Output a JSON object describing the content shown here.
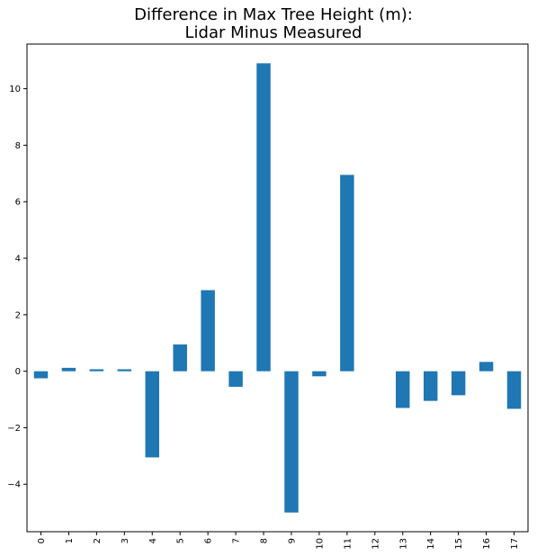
{
  "chart_data": {
    "type": "bar",
    "title": [
      "Difference in Max Tree Height (m):",
      "Lidar Minus Measured"
    ],
    "xlabel": "",
    "ylabel": "",
    "categories": [
      "0",
      "1",
      "2",
      "3",
      "4",
      "5",
      "6",
      "7",
      "8",
      "9",
      "10",
      "11",
      "12",
      "13",
      "14",
      "15",
      "16",
      "17"
    ],
    "values": [
      -0.25,
      0.12,
      0.07,
      0.07,
      -3.05,
      0.95,
      2.87,
      -0.55,
      10.9,
      -5.0,
      -0.18,
      6.95,
      0.0,
      -1.3,
      -1.05,
      -0.85,
      0.33,
      -1.33
    ],
    "ylim": [
      -5.68,
      11.58
    ],
    "yticks": [
      -4,
      -2,
      0,
      2,
      4,
      6,
      8,
      10
    ],
    "ytick_labels": [
      "−4",
      "−2",
      "0",
      "2",
      "4",
      "6",
      "8",
      "10"
    ],
    "bar_color": "#1f77b4",
    "grid": false,
    "legend": "none"
  }
}
